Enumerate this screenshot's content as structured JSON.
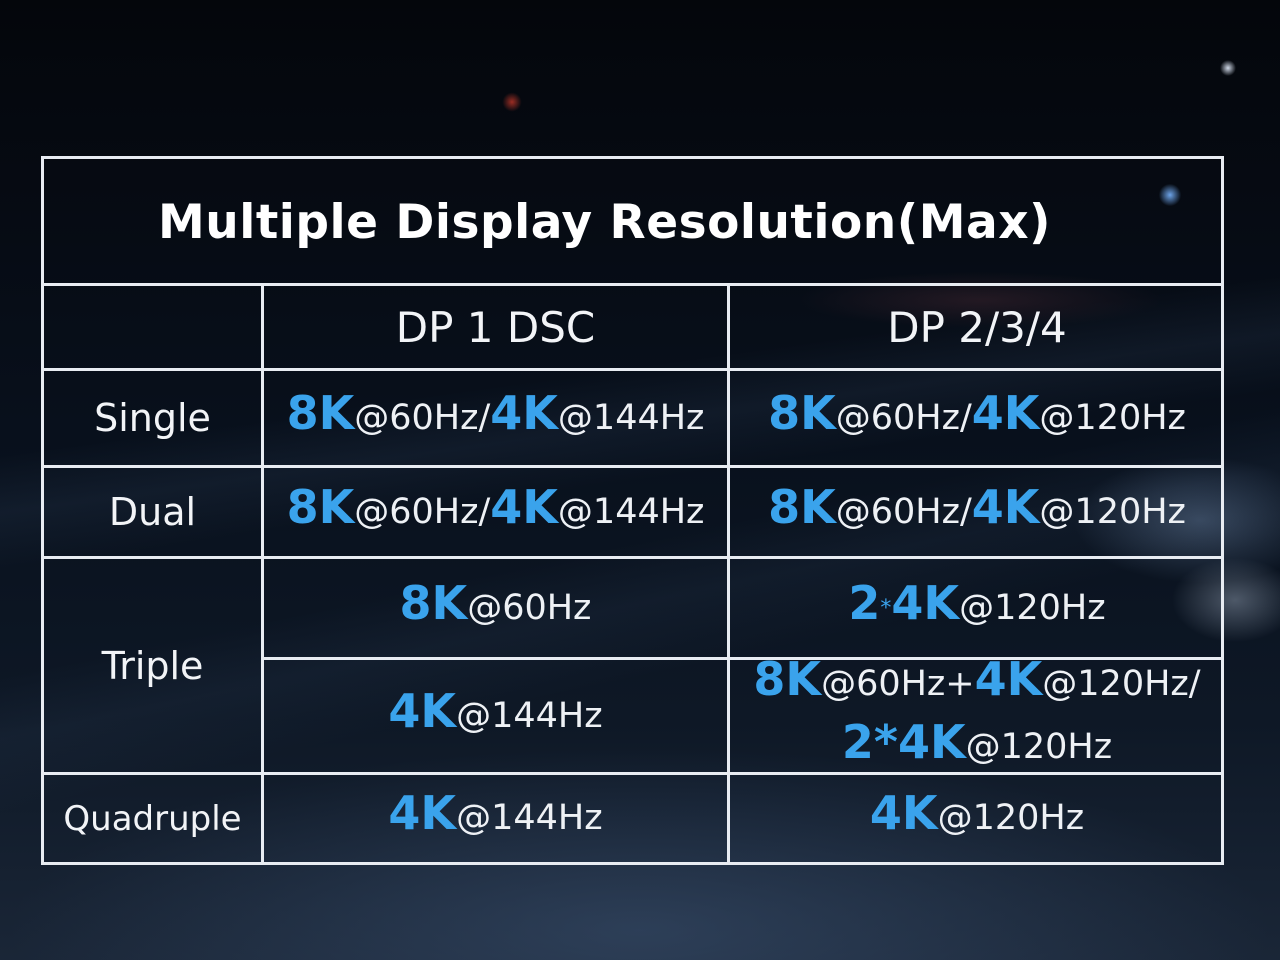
{
  "title": "Multiple Display Resolution(Max)",
  "columns": [
    "DP 1 DSC",
    "DP 2/3/4"
  ],
  "rows": {
    "single": {
      "label": "Single",
      "dp1": [
        {
          "k": "8K",
          "h": "@60Hz/"
        },
        {
          "k": "4K",
          "h": "@144Hz"
        }
      ],
      "dp2": [
        {
          "k": "8K",
          "h": "@60Hz/"
        },
        {
          "k": "4K",
          "h": "@120Hz"
        }
      ]
    },
    "dual": {
      "label": "Dual",
      "dp1": [
        {
          "k": "8K",
          "h": "@60Hz/"
        },
        {
          "k": "4K",
          "h": "@144Hz"
        }
      ],
      "dp2": [
        {
          "k": "8K",
          "h": "@60Hz/"
        },
        {
          "k": "4K",
          "h": "@120Hz"
        }
      ]
    },
    "triple": {
      "label": "Triple",
      "a": {
        "dp1": [
          {
            "k": "8K",
            "h": "@60Hz"
          }
        ],
        "dp2": {
          "n": "2",
          "sep": "*",
          "k": "4K",
          "h": "@120Hz"
        }
      },
      "b": {
        "dp1": [
          {
            "k": "4K",
            "h": "@144Hz"
          }
        ],
        "dp2_line1": [
          {
            "k": "8K",
            "h": "@60Hz+"
          },
          {
            "k": "4K",
            "h": "@120Hz/"
          }
        ],
        "dp2_line2": {
          "n": "2*",
          "k": "4K",
          "h": "@120Hz"
        }
      }
    },
    "quadruple": {
      "label": "Quadruple",
      "dp1": [
        {
          "k": "4K",
          "h": "@144Hz"
        }
      ],
      "dp2": [
        {
          "k": "4K",
          "h": "@120Hz"
        }
      ]
    }
  },
  "colors": {
    "accent": "#3aa3ec",
    "border": "#e8ecf2",
    "background": "#05080f"
  }
}
